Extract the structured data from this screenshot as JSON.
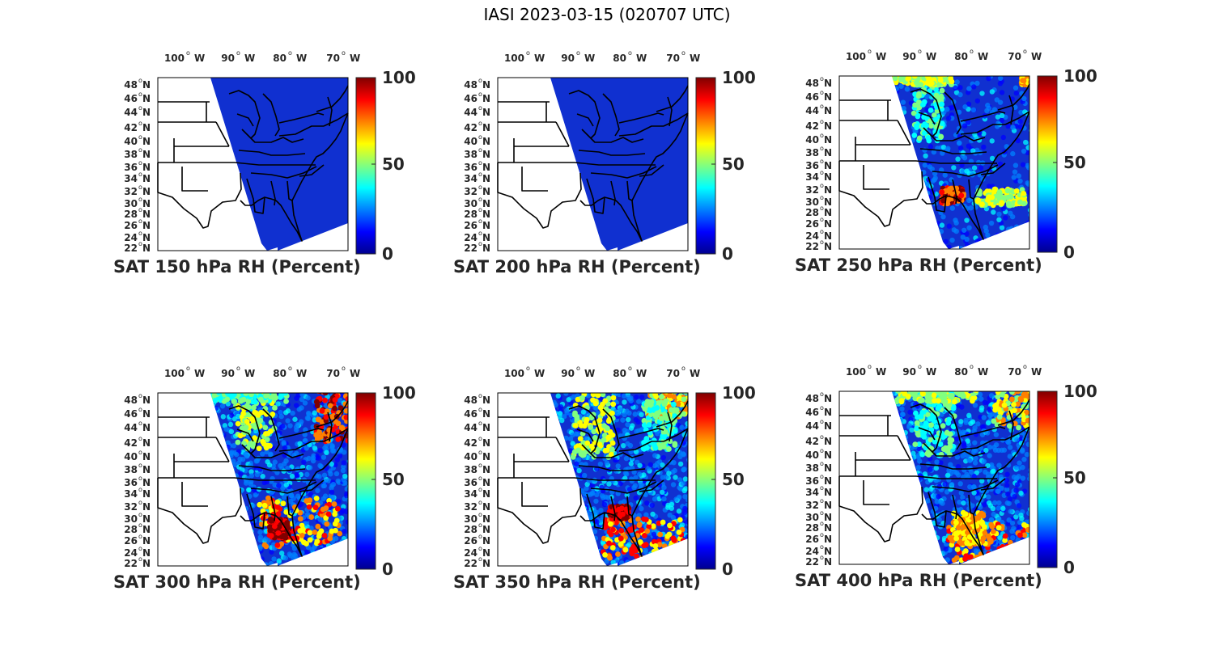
{
  "title": "IASI 2023-03-15 (020707 UTC)",
  "lon_labels": [
    "100",
    "90",
    "80",
    "70"
  ],
  "lon_suffix": "W",
  "lat_labels": [
    "48",
    "46",
    "44",
    "42",
    "40",
    "38",
    "36",
    "34",
    "32",
    "30",
    "28",
    "26",
    "24",
    "22"
  ],
  "lat_suffix": "N",
  "colorbar": {
    "ticks": [
      "100",
      "50",
      "0"
    ],
    "min": 0,
    "max": 100,
    "colormap": "jet"
  },
  "panels": [
    {
      "title": "SAT 150 hPa RH (Percent)",
      "level": "150 hPa",
      "moisture": "very dry"
    },
    {
      "title": "SAT 200 hPa RH (Percent)",
      "level": "200 hPa",
      "moisture": "very dry"
    },
    {
      "title": "SAT 250 hPa RH (Percent)",
      "level": "250 hPa",
      "moisture": "dry, moist patches Great Lakes / Southeast coast"
    },
    {
      "title": "SAT 300 hPa RH (Percent)",
      "level": "300 hPa",
      "moisture": "mixed, moist Southeast and Northeast"
    },
    {
      "title": "SAT 350 hPa RH (Percent)",
      "level": "350 hPa",
      "moisture": "mixed, moist Southeast and Northeast"
    },
    {
      "title": "SAT 400 hPa RH (Percent)",
      "level": "400 hPa",
      "moisture": "mixed, moist Florida / Atlantic"
    }
  ],
  "colors": {
    "jet": [
      "#00008f",
      "#0000ff",
      "#0080ff",
      "#00ffff",
      "#80ff80",
      "#ffff00",
      "#ff8000",
      "#ff0000",
      "#800000"
    ],
    "dry": "#1030d0",
    "land": "#ffffff",
    "boundary": "#000000"
  }
}
